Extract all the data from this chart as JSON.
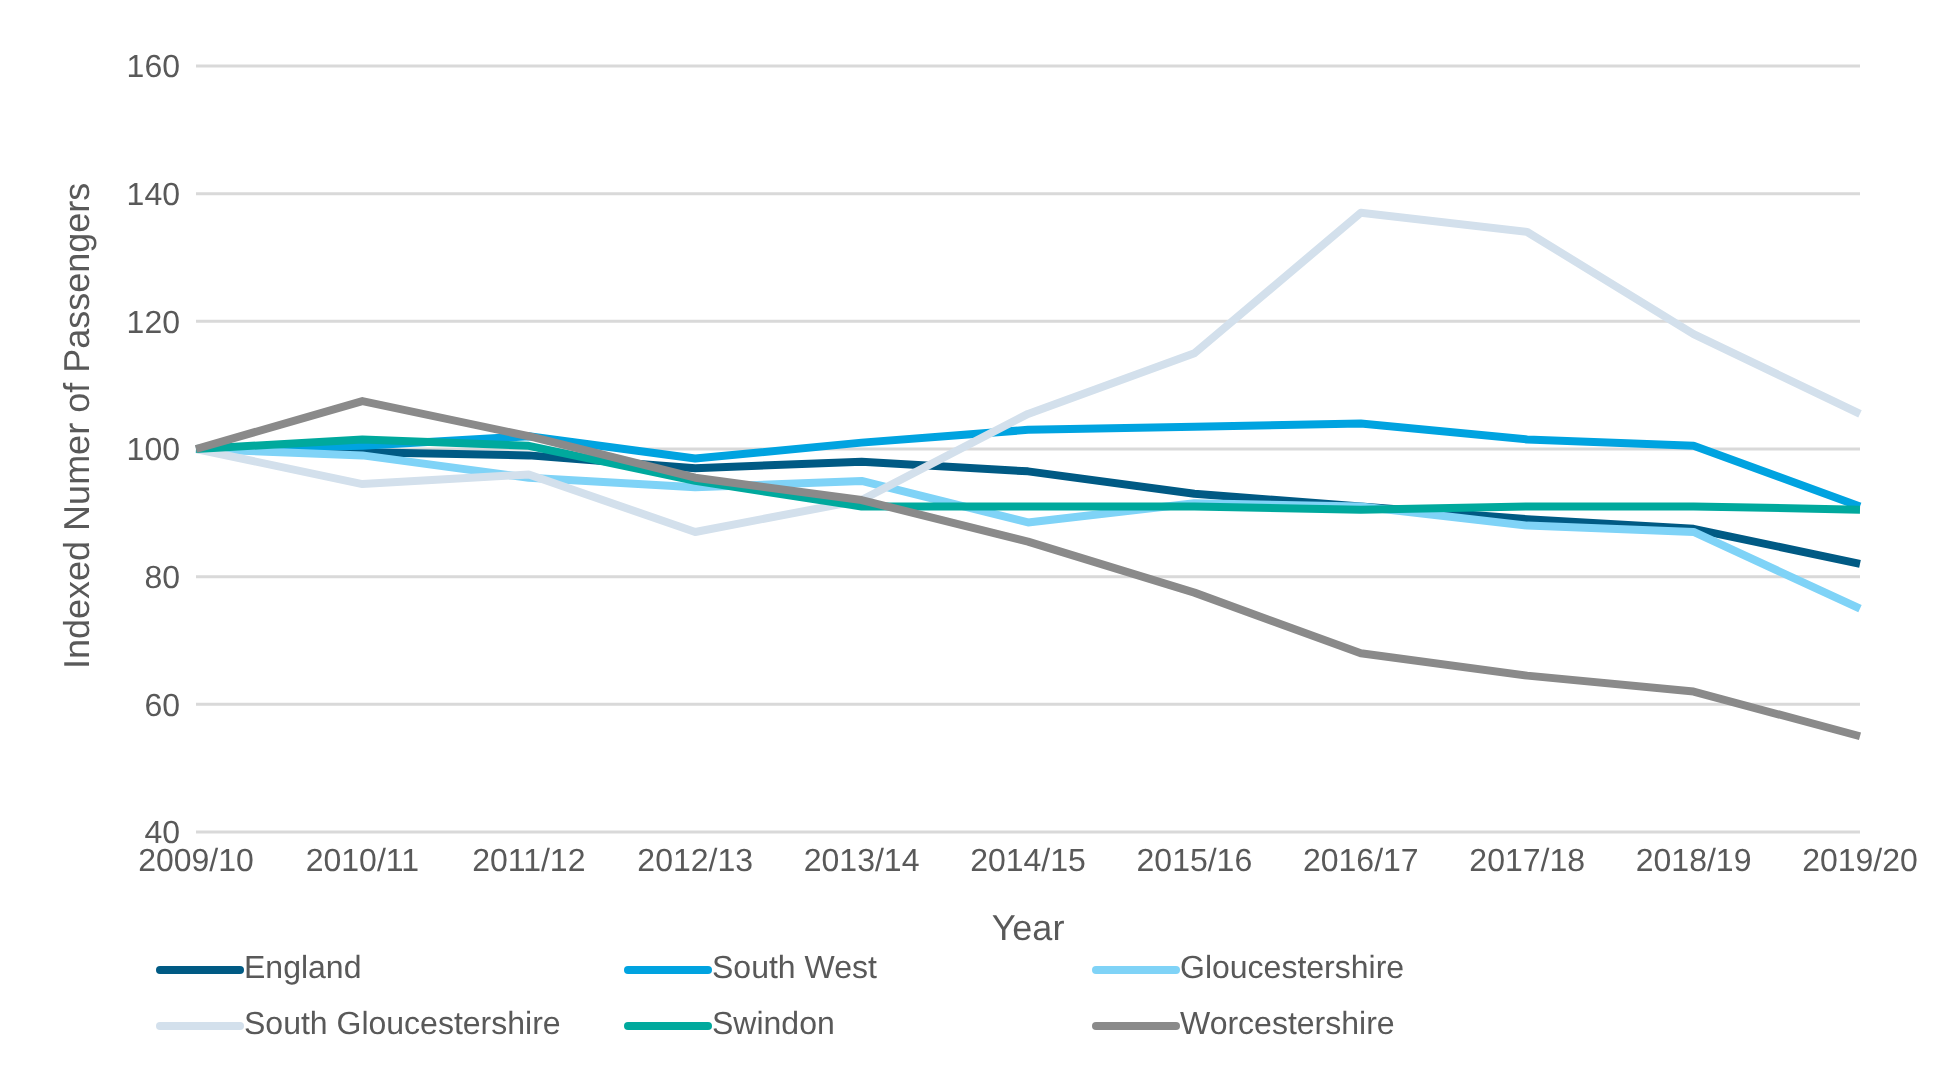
{
  "chart_data": {
    "type": "line",
    "xlabel": "Year",
    "ylabel": "Indexed Numer of Passengers",
    "categories": [
      "2009/10",
      "2010/11",
      "2011/12",
      "2012/13",
      "2013/14",
      "2014/15",
      "2015/16",
      "2016/17",
      "2017/18",
      "2018/19",
      "2019/20"
    ],
    "ylim": [
      40,
      160
    ],
    "yticks": [
      40,
      60,
      80,
      100,
      120,
      140,
      160
    ],
    "grid": "y",
    "legend": "bottom",
    "marker": "none",
    "line_style": "solid",
    "series": [
      {
        "name": "England",
        "color": "#005a84",
        "values": [
          100,
          99.5,
          99,
          97,
          98,
          96.5,
          93,
          91,
          89,
          87.5,
          82
        ]
      },
      {
        "name": "South West",
        "color": "#00a3e0",
        "values": [
          100,
          100.5,
          102,
          98.5,
          101,
          103,
          103.5,
          104,
          101.5,
          100.5,
          91
        ]
      },
      {
        "name": "Gloucestershire",
        "color": "#7fd3f7",
        "values": [
          100,
          99,
          95.5,
          94,
          95,
          88.5,
          91.5,
          91,
          88,
          87,
          75
        ]
      },
      {
        "name": "South Gloucestershire",
        "color": "#d3e0ec",
        "values": [
          100,
          94.5,
          96,
          87,
          92,
          105.5,
          115,
          137,
          134,
          118,
          105.5
        ]
      },
      {
        "name": "Swindon",
        "color": "#00a99d",
        "values": [
          100,
          101.5,
          100.5,
          95,
          91,
          91,
          91,
          90.5,
          91,
          91,
          90.5
        ]
      },
      {
        "name": "Worcestershire",
        "color": "#8a8a8a",
        "values": [
          100,
          107.5,
          102,
          95.5,
          92,
          85.5,
          77.5,
          68,
          64.5,
          62,
          55
        ]
      }
    ]
  }
}
